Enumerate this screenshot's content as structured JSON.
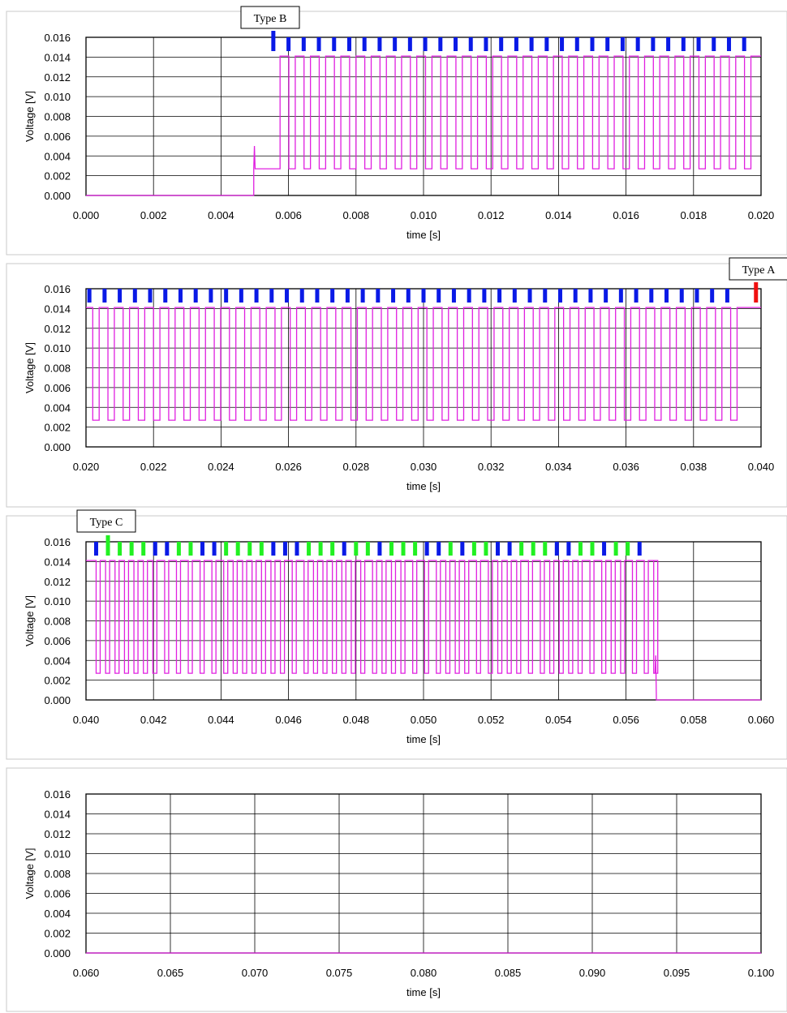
{
  "colors": {
    "signal": "#e020e0",
    "marker_blue": "#0a1ae6",
    "marker_green": "#22f022",
    "marker_red": "#f01010"
  },
  "chart_data": [
    {
      "type": "line",
      "xlabel": "time [s]",
      "ylabel": "Voltage [V]",
      "xlim": [
        0.0,
        0.02
      ],
      "ylim": [
        0.0,
        0.016
      ],
      "xticks": [
        "0.000",
        "0.002",
        "0.004",
        "0.006",
        "0.008",
        "0.010",
        "0.012",
        "0.014",
        "0.016",
        "0.018",
        "0.020"
      ],
      "yticks": [
        "0.000",
        "0.002",
        "0.004",
        "0.006",
        "0.008",
        "0.010",
        "0.012",
        "0.014",
        "0.016"
      ],
      "grid": true,
      "annotation": {
        "text": "Type B",
        "x": 0.0056
      },
      "signal": {
        "low_level": 0.0027,
        "high_level": 0.0141,
        "leading": {
          "flat_until": 0.00497,
          "spike": 0.005,
          "pedestal_until": 0.00575
        },
        "pulse_starts": [
          0.00575,
          0.0062,
          0.00665,
          0.0071,
          0.00755,
          0.008,
          0.00845,
          0.0089,
          0.00935,
          0.0098,
          0.01025,
          0.0107,
          0.01115,
          0.0116,
          0.01205,
          0.0125,
          0.01295,
          0.0134,
          0.01385,
          0.0143,
          0.01475,
          0.0152,
          0.01565,
          0.0161,
          0.01655,
          0.017,
          0.01745,
          0.0179,
          0.01835,
          0.0188,
          0.01925,
          0.0197
        ],
        "pulse_width": 0.00026,
        "ends_high": true
      },
      "markers": [
        {
          "x": 0.00555,
          "color": "blue",
          "tall": true
        },
        {
          "x": 0.006,
          "color": "blue"
        },
        {
          "x": 0.00645,
          "color": "blue"
        },
        {
          "x": 0.0069,
          "color": "blue"
        },
        {
          "x": 0.00735,
          "color": "blue"
        },
        {
          "x": 0.0078,
          "color": "blue"
        },
        {
          "x": 0.00825,
          "color": "blue"
        },
        {
          "x": 0.0087,
          "color": "blue"
        },
        {
          "x": 0.00915,
          "color": "blue"
        },
        {
          "x": 0.0096,
          "color": "blue"
        },
        {
          "x": 0.01005,
          "color": "blue"
        },
        {
          "x": 0.0105,
          "color": "blue"
        },
        {
          "x": 0.01095,
          "color": "blue"
        },
        {
          "x": 0.0114,
          "color": "blue"
        },
        {
          "x": 0.01185,
          "color": "blue"
        },
        {
          "x": 0.0123,
          "color": "blue"
        },
        {
          "x": 0.01275,
          "color": "blue"
        },
        {
          "x": 0.0132,
          "color": "blue"
        },
        {
          "x": 0.01365,
          "color": "blue"
        },
        {
          "x": 0.0141,
          "color": "blue"
        },
        {
          "x": 0.01455,
          "color": "blue"
        },
        {
          "x": 0.015,
          "color": "blue"
        },
        {
          "x": 0.01545,
          "color": "blue"
        },
        {
          "x": 0.0159,
          "color": "blue"
        },
        {
          "x": 0.01635,
          "color": "blue"
        },
        {
          "x": 0.0168,
          "color": "blue"
        },
        {
          "x": 0.01725,
          "color": "blue"
        },
        {
          "x": 0.0177,
          "color": "blue"
        },
        {
          "x": 0.01815,
          "color": "blue"
        },
        {
          "x": 0.0186,
          "color": "blue"
        },
        {
          "x": 0.01905,
          "color": "blue"
        },
        {
          "x": 0.0195,
          "color": "blue"
        }
      ]
    },
    {
      "type": "line",
      "xlabel": "time [s]",
      "ylabel": "Voltage [V]",
      "xlim": [
        0.02,
        0.04
      ],
      "ylim": [
        0.0,
        0.016
      ],
      "xticks": [
        "0.020",
        "0.022",
        "0.024",
        "0.026",
        "0.028",
        "0.030",
        "0.032",
        "0.034",
        "0.036",
        "0.038",
        "0.040"
      ],
      "yticks": [
        "0.000",
        "0.002",
        "0.004",
        "0.006",
        "0.008",
        "0.010",
        "0.012",
        "0.014",
        "0.016"
      ],
      "grid": true,
      "annotation": {
        "text": "Type A",
        "x": 0.0398
      },
      "signal": {
        "low_level": 0.0027,
        "high_level": 0.0141,
        "low_starts": [
          0.0202,
          0.02065,
          0.0211,
          0.02155,
          0.022,
          0.02245,
          0.0229,
          0.02335,
          0.0238,
          0.02425,
          0.0247,
          0.02515,
          0.0256,
          0.02605,
          0.0265,
          0.02695,
          0.0274,
          0.02785,
          0.0283,
          0.02875,
          0.0292,
          0.02965,
          0.0301,
          0.03055,
          0.031,
          0.03145,
          0.0319,
          0.03235,
          0.0328,
          0.03325,
          0.0337,
          0.03415,
          0.0346,
          0.03505,
          0.0355,
          0.03595,
          0.0364,
          0.03685,
          0.0373,
          0.03775,
          0.0382,
          0.03865,
          0.0391
        ],
        "low_width": 0.00019,
        "ends_high": true
      },
      "markers": [
        {
          "x": 0.0201,
          "color": "blue"
        },
        {
          "x": 0.02055,
          "color": "blue"
        },
        {
          "x": 0.021,
          "color": "blue"
        },
        {
          "x": 0.02145,
          "color": "blue"
        },
        {
          "x": 0.0219,
          "color": "blue"
        },
        {
          "x": 0.02235,
          "color": "blue"
        },
        {
          "x": 0.0228,
          "color": "blue"
        },
        {
          "x": 0.02325,
          "color": "blue"
        },
        {
          "x": 0.0237,
          "color": "blue"
        },
        {
          "x": 0.02415,
          "color": "blue"
        },
        {
          "x": 0.0246,
          "color": "blue"
        },
        {
          "x": 0.02505,
          "color": "blue"
        },
        {
          "x": 0.0255,
          "color": "blue"
        },
        {
          "x": 0.02595,
          "color": "blue"
        },
        {
          "x": 0.0264,
          "color": "blue"
        },
        {
          "x": 0.02685,
          "color": "blue"
        },
        {
          "x": 0.0273,
          "color": "blue"
        },
        {
          "x": 0.02775,
          "color": "blue"
        },
        {
          "x": 0.0282,
          "color": "blue"
        },
        {
          "x": 0.02865,
          "color": "blue"
        },
        {
          "x": 0.0291,
          "color": "blue"
        },
        {
          "x": 0.02955,
          "color": "blue"
        },
        {
          "x": 0.03,
          "color": "blue"
        },
        {
          "x": 0.03045,
          "color": "blue"
        },
        {
          "x": 0.0309,
          "color": "blue"
        },
        {
          "x": 0.03135,
          "color": "blue"
        },
        {
          "x": 0.0318,
          "color": "blue"
        },
        {
          "x": 0.03225,
          "color": "blue"
        },
        {
          "x": 0.0327,
          "color": "blue"
        },
        {
          "x": 0.03315,
          "color": "blue"
        },
        {
          "x": 0.0336,
          "color": "blue"
        },
        {
          "x": 0.03405,
          "color": "blue"
        },
        {
          "x": 0.0345,
          "color": "blue"
        },
        {
          "x": 0.03495,
          "color": "blue"
        },
        {
          "x": 0.0354,
          "color": "blue"
        },
        {
          "x": 0.03585,
          "color": "blue"
        },
        {
          "x": 0.0363,
          "color": "blue"
        },
        {
          "x": 0.03675,
          "color": "blue"
        },
        {
          "x": 0.0372,
          "color": "blue"
        },
        {
          "x": 0.03765,
          "color": "blue"
        },
        {
          "x": 0.0381,
          "color": "blue"
        },
        {
          "x": 0.03855,
          "color": "blue"
        },
        {
          "x": 0.039,
          "color": "blue"
        },
        {
          "x": 0.03985,
          "color": "red",
          "tall": true
        }
      ]
    },
    {
      "type": "line",
      "xlabel": "time [s]",
      "ylabel": "Voltage [V]",
      "xlim": [
        0.04,
        0.06
      ],
      "ylim": [
        0.0,
        0.016
      ],
      "xticks": [
        "0.040",
        "0.042",
        "0.044",
        "0.046",
        "0.048",
        "0.050",
        "0.052",
        "0.054",
        "0.056",
        "0.058",
        "0.060"
      ],
      "yticks": [
        "0.000",
        "0.002",
        "0.004",
        "0.006",
        "0.008",
        "0.010",
        "0.012",
        "0.014",
        "0.016"
      ],
      "grid": true,
      "annotation": {
        "text": "Type C",
        "x": 0.0407
      },
      "signal": {
        "low_level": 0.0027,
        "high_level": 0.0141,
        "low_starts": [
          0.0403,
          0.04058,
          0.04086,
          0.04114,
          0.04142,
          0.0417,
          0.04198,
          0.04233,
          0.04268,
          0.04303,
          0.04338,
          0.04373,
          0.04408,
          0.04436,
          0.04464,
          0.04492,
          0.0452,
          0.04548,
          0.04576,
          0.04611,
          0.04646,
          0.04674,
          0.04702,
          0.0473,
          0.04758,
          0.04786,
          0.04814,
          0.04849,
          0.04877,
          0.04905,
          0.04933,
          0.04968,
          0.05003,
          0.05038,
          0.05066,
          0.05094,
          0.05122,
          0.05157,
          0.05192,
          0.0522,
          0.05248,
          0.05276,
          0.05311,
          0.05346,
          0.05374,
          0.05402,
          0.0543,
          0.05458,
          0.05493,
          0.05528,
          0.05556,
          0.05584,
          0.05619,
          0.05654,
          0.05682
        ],
        "low_width": 0.00012,
        "tail": {
          "cutoff": 0.05688,
          "spike": 0.0045
        },
        "ends_high": false
      },
      "markers": [
        {
          "x": 0.0403,
          "color": "blue"
        },
        {
          "x": 0.04065,
          "color": "green",
          "tall": true
        },
        {
          "x": 0.041,
          "color": "green"
        },
        {
          "x": 0.04135,
          "color": "green"
        },
        {
          "x": 0.0417,
          "color": "green"
        },
        {
          "x": 0.04205,
          "color": "blue"
        },
        {
          "x": 0.0424,
          "color": "blue"
        },
        {
          "x": 0.04275,
          "color": "green"
        },
        {
          "x": 0.0431,
          "color": "green"
        },
        {
          "x": 0.04345,
          "color": "blue"
        },
        {
          "x": 0.0438,
          "color": "blue"
        },
        {
          "x": 0.04415,
          "color": "green"
        },
        {
          "x": 0.0445,
          "color": "green"
        },
        {
          "x": 0.04485,
          "color": "green"
        },
        {
          "x": 0.0452,
          "color": "green"
        },
        {
          "x": 0.04555,
          "color": "blue"
        },
        {
          "x": 0.0459,
          "color": "blue"
        },
        {
          "x": 0.04625,
          "color": "blue"
        },
        {
          "x": 0.0466,
          "color": "green"
        },
        {
          "x": 0.04695,
          "color": "green"
        },
        {
          "x": 0.0473,
          "color": "green"
        },
        {
          "x": 0.04765,
          "color": "blue"
        },
        {
          "x": 0.048,
          "color": "green"
        },
        {
          "x": 0.04835,
          "color": "green"
        },
        {
          "x": 0.0487,
          "color": "blue"
        },
        {
          "x": 0.04905,
          "color": "green"
        },
        {
          "x": 0.0494,
          "color": "green"
        },
        {
          "x": 0.04975,
          "color": "green"
        },
        {
          "x": 0.0501,
          "color": "blue"
        },
        {
          "x": 0.05045,
          "color": "blue"
        },
        {
          "x": 0.0508,
          "color": "green"
        },
        {
          "x": 0.05115,
          "color": "blue"
        },
        {
          "x": 0.0515,
          "color": "green"
        },
        {
          "x": 0.05185,
          "color": "green"
        },
        {
          "x": 0.0522,
          "color": "blue"
        },
        {
          "x": 0.05255,
          "color": "blue"
        },
        {
          "x": 0.0529,
          "color": "green"
        },
        {
          "x": 0.05325,
          "color": "green"
        },
        {
          "x": 0.0536,
          "color": "green"
        },
        {
          "x": 0.05395,
          "color": "blue"
        },
        {
          "x": 0.0543,
          "color": "blue"
        },
        {
          "x": 0.05465,
          "color": "green"
        },
        {
          "x": 0.055,
          "color": "green"
        },
        {
          "x": 0.05535,
          "color": "blue"
        },
        {
          "x": 0.0557,
          "color": "green"
        },
        {
          "x": 0.05605,
          "color": "green"
        },
        {
          "x": 0.0564,
          "color": "blue"
        }
      ]
    },
    {
      "type": "line",
      "xlabel": "time [s]",
      "ylabel": "Voltage [V]",
      "xlim": [
        0.06,
        0.1
      ],
      "ylim": [
        0.0,
        0.016
      ],
      "xticks": [
        "0.060",
        "0.065",
        "0.070",
        "0.075",
        "0.080",
        "0.085",
        "0.090",
        "0.095",
        "0.100"
      ],
      "yticks": [
        "0.000",
        "0.002",
        "0.004",
        "0.006",
        "0.008",
        "0.010",
        "0.012",
        "0.014",
        "0.016"
      ],
      "grid": true,
      "signal": {
        "flat_value": 0.0,
        "ends_high": false
      },
      "markers": []
    }
  ]
}
